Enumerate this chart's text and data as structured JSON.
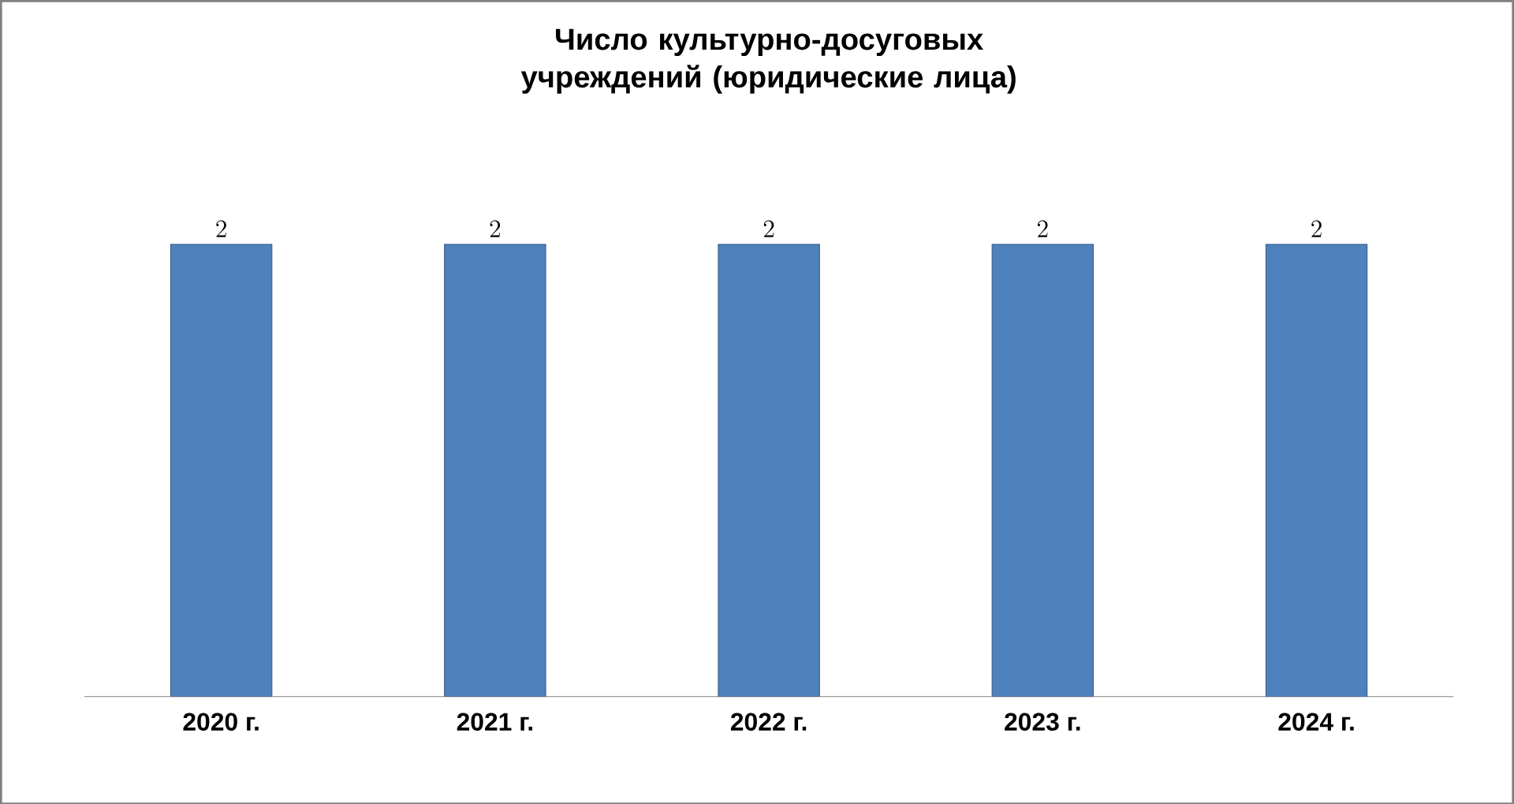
{
  "chart_data": {
    "type": "bar",
    "title": "Число культурно-досуговых учреждений (юридические лица)",
    "categories": [
      "2020 г.",
      "2021 г.",
      "2022 г.",
      "2023 г.",
      "2024 г."
    ],
    "values": [
      2,
      2,
      2,
      2,
      2
    ],
    "color": "#4f81bd",
    "data_labels": true
  }
}
